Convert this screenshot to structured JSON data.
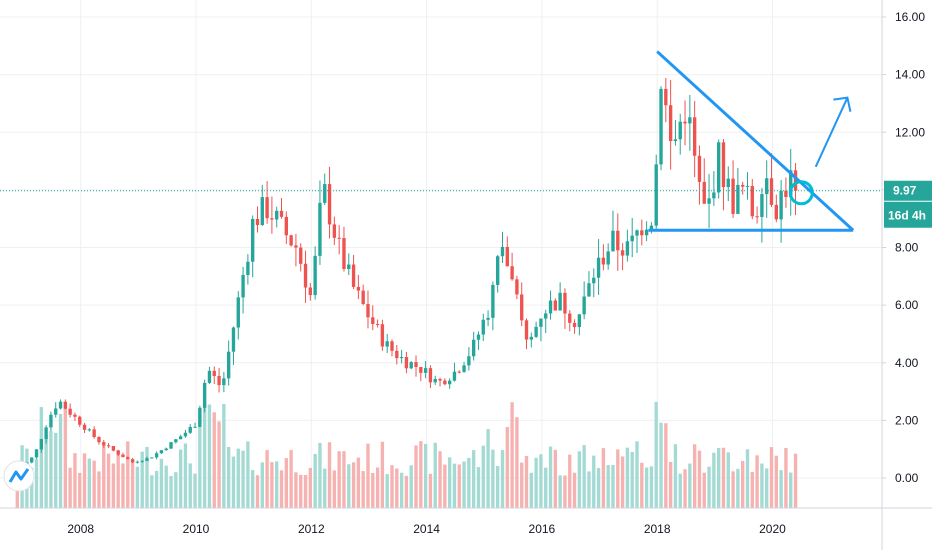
{
  "chart_data": {
    "type": "candlestick",
    "title": "",
    "xlabel": "",
    "ylabel": "",
    "x_ticks": [
      "2008",
      "2010",
      "2012",
      "2014",
      "2016",
      "2018",
      "2020"
    ],
    "y_ticks": [
      "0.00",
      "2.00",
      "4.00",
      "6.00",
      "8.00",
      "10.00",
      "12.00",
      "14.00",
      "16.00"
    ],
    "ylim": [
      -1.0,
      16.5
    ],
    "xlim": [
      2006.6,
      2021.9
    ],
    "grid": true,
    "price_badge": "9.97",
    "countdown_badge": "16d 4h",
    "last_price": 9.97,
    "up_color": "#26a69a",
    "down_color": "#ef5350",
    "price_keypoints": [
      [
        2006.9,
        0.2
      ],
      [
        2007.2,
        0.8
      ],
      [
        2007.45,
        2.1
      ],
      [
        2007.62,
        2.7
      ],
      [
        2007.8,
        2.3
      ],
      [
        2008.0,
        1.9
      ],
      [
        2008.3,
        1.3
      ],
      [
        2008.6,
        0.9
      ],
      [
        2008.9,
        0.55
      ],
      [
        2009.2,
        0.7
      ],
      [
        2009.5,
        1.1
      ],
      [
        2009.8,
        1.55
      ],
      [
        2010.0,
        1.9
      ],
      [
        2010.2,
        3.8
      ],
      [
        2010.45,
        3.1
      ],
      [
        2010.7,
        5.8
      ],
      [
        2011.0,
        9.0
      ],
      [
        2011.25,
        9.4
      ],
      [
        2011.5,
        8.6
      ],
      [
        2011.75,
        8.0
      ],
      [
        2012.0,
        6.2
      ],
      [
        2012.2,
        10.1
      ],
      [
        2012.5,
        7.8
      ],
      [
        2012.75,
        6.5
      ],
      [
        2013.0,
        5.6
      ],
      [
        2013.3,
        4.6
      ],
      [
        2013.6,
        4.1
      ],
      [
        2013.9,
        3.8
      ],
      [
        2014.2,
        3.3
      ],
      [
        2014.5,
        3.7
      ],
      [
        2014.8,
        4.5
      ],
      [
        2015.1,
        6.0
      ],
      [
        2015.3,
        8.2
      ],
      [
        2015.55,
        6.2
      ],
      [
        2015.75,
        4.5
      ],
      [
        2016.0,
        5.8
      ],
      [
        2016.3,
        6.2
      ],
      [
        2016.6,
        5.4
      ],
      [
        2016.9,
        7.1
      ],
      [
        2017.2,
        8.2
      ],
      [
        2017.5,
        7.9
      ],
      [
        2017.75,
        8.9
      ],
      [
        2017.95,
        9.2
      ],
      [
        2018.05,
        14.3
      ],
      [
        2018.25,
        11.3
      ],
      [
        2018.5,
        13.0
      ],
      [
        2018.7,
        10.3
      ],
      [
        2018.85,
        9.0
      ],
      [
        2019.05,
        11.2
      ],
      [
        2019.3,
        9.6
      ],
      [
        2019.5,
        10.0
      ],
      [
        2019.7,
        9.0
      ],
      [
        2019.85,
        10.9
      ],
      [
        2020.05,
        9.4
      ],
      [
        2020.3,
        10.4
      ],
      [
        2020.45,
        9.97
      ]
    ],
    "volume_series": "monthly volume bars"
  }
}
